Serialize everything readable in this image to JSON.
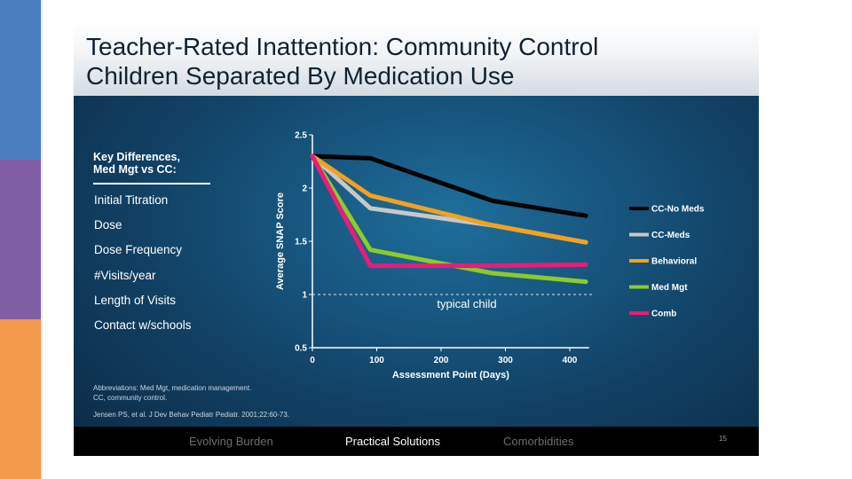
{
  "slide": {
    "title_lines": [
      "Teacher-Rated Inattention: Community Control",
      "Children Separated By Medication Use"
    ],
    "key_differences": {
      "title_lines": [
        "Key Differences,",
        "Med Mgt vs CC:"
      ],
      "items": [
        "Initial Titration",
        "Dose",
        "Dose Frequency",
        "#Visits/year",
        "Length of Visits",
        "Contact w/schools"
      ]
    },
    "abbreviations": [
      "Abbreviations: Med Mgt, medication management.",
      "CC, community control."
    ],
    "citation": "Jensen PS, et al. J Dev Behav Pediatr Pediatr. 2001;22:60-73.",
    "footer": {
      "items": [
        "Evolving Burden",
        "Practical Solutions",
        "Comorbidities"
      ],
      "active_index": 1,
      "slide_number": "15"
    }
  },
  "chart_data": {
    "type": "line",
    "title": "",
    "xlabel": "Assessment Point (Days)",
    "ylabel": "Average SNAP Score",
    "x_ticks": [
      0,
      100,
      200,
      300,
      400
    ],
    "y_ticks": [
      0.5,
      1,
      1.5,
      2,
      2.5
    ],
    "y_tick_labels": [
      "0.5",
      "1",
      "1.5",
      "2",
      "2.5"
    ],
    "xlim": [
      0,
      430
    ],
    "ylim": [
      0.5,
      2.5
    ],
    "reference_line": {
      "y": 1,
      "label": "typical child",
      "style": "dashed"
    },
    "legend_position": "right",
    "series": [
      {
        "name": "CC-No Meds",
        "color": "#000000",
        "points": [
          [
            0,
            2.3
          ],
          [
            90,
            2.28
          ],
          [
            280,
            1.88
          ],
          [
            425,
            1.74
          ]
        ]
      },
      {
        "name": "CC-Meds",
        "color": "#c8c8c8",
        "points": [
          [
            0,
            2.3
          ],
          [
            90,
            1.81
          ],
          [
            280,
            1.65
          ],
          [
            425,
            1.49
          ]
        ]
      },
      {
        "name": "Behavioral",
        "color": "#f4a11d",
        "points": [
          [
            0,
            2.3
          ],
          [
            90,
            1.93
          ],
          [
            280,
            1.65
          ],
          [
            425,
            1.49
          ]
        ]
      },
      {
        "name": "Med Mgt",
        "color": "#8ccb2a",
        "points": [
          [
            0,
            2.3
          ],
          [
            90,
            1.42
          ],
          [
            280,
            1.2
          ],
          [
            425,
            1.12
          ]
        ]
      },
      {
        "name": "Comb",
        "color": "#ec1b7a",
        "points": [
          [
            0,
            2.3
          ],
          [
            90,
            1.27
          ],
          [
            280,
            1.27
          ],
          [
            425,
            1.28
          ]
        ]
      }
    ]
  }
}
